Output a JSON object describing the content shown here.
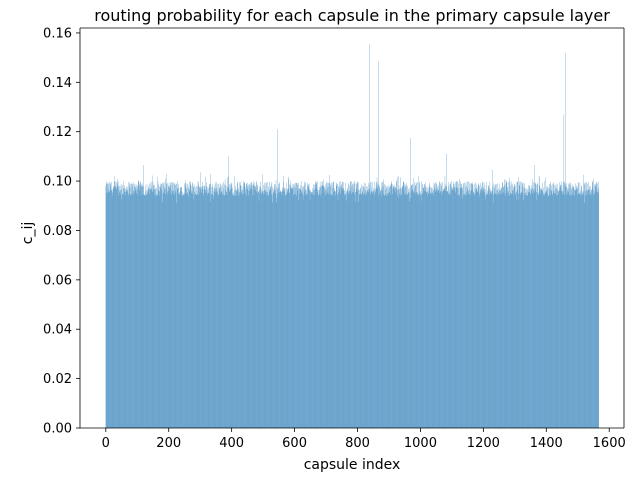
{
  "chart_data": {
    "type": "bar",
    "title": "routing probability for each capsule in the primary capsule layer",
    "xlabel": "capsule index",
    "ylabel": "c_ij",
    "xlim": [
      -82,
      1647
    ],
    "ylim": [
      0,
      0.162
    ],
    "xticks": [
      0,
      200,
      400,
      600,
      800,
      1000,
      1200,
      1400,
      1600
    ],
    "yticks": [
      0.0,
      0.02,
      0.04,
      0.06,
      0.08,
      0.1,
      0.12,
      0.14,
      0.16
    ],
    "ytick_labels": [
      "0.00",
      "0.02",
      "0.04",
      "0.06",
      "0.08",
      "0.10",
      "0.12",
      "0.14",
      "0.16"
    ],
    "xtick_labels": [
      "0",
      "200",
      "400",
      "600",
      "800",
      "1000",
      "1200",
      "1400",
      "1600"
    ],
    "bar_color": "#1f77b4",
    "grid": false,
    "num_bars": 1568,
    "baseline": 0.097,
    "peaks": [
      {
        "x": 120,
        "y": 0.1065
      },
      {
        "x": 300,
        "y": 0.1035
      },
      {
        "x": 390,
        "y": 0.11
      },
      {
        "x": 545,
        "y": 0.121
      },
      {
        "x": 710,
        "y": 0.1025
      },
      {
        "x": 838,
        "y": 0.1555
      },
      {
        "x": 866,
        "y": 0.1485
      },
      {
        "x": 968,
        "y": 0.1175
      },
      {
        "x": 1082,
        "y": 0.111
      },
      {
        "x": 1230,
        "y": 0.1045
      },
      {
        "x": 1362,
        "y": 0.1065
      },
      {
        "x": 1456,
        "y": 0.127
      },
      {
        "x": 1462,
        "y": 0.152
      }
    ]
  }
}
